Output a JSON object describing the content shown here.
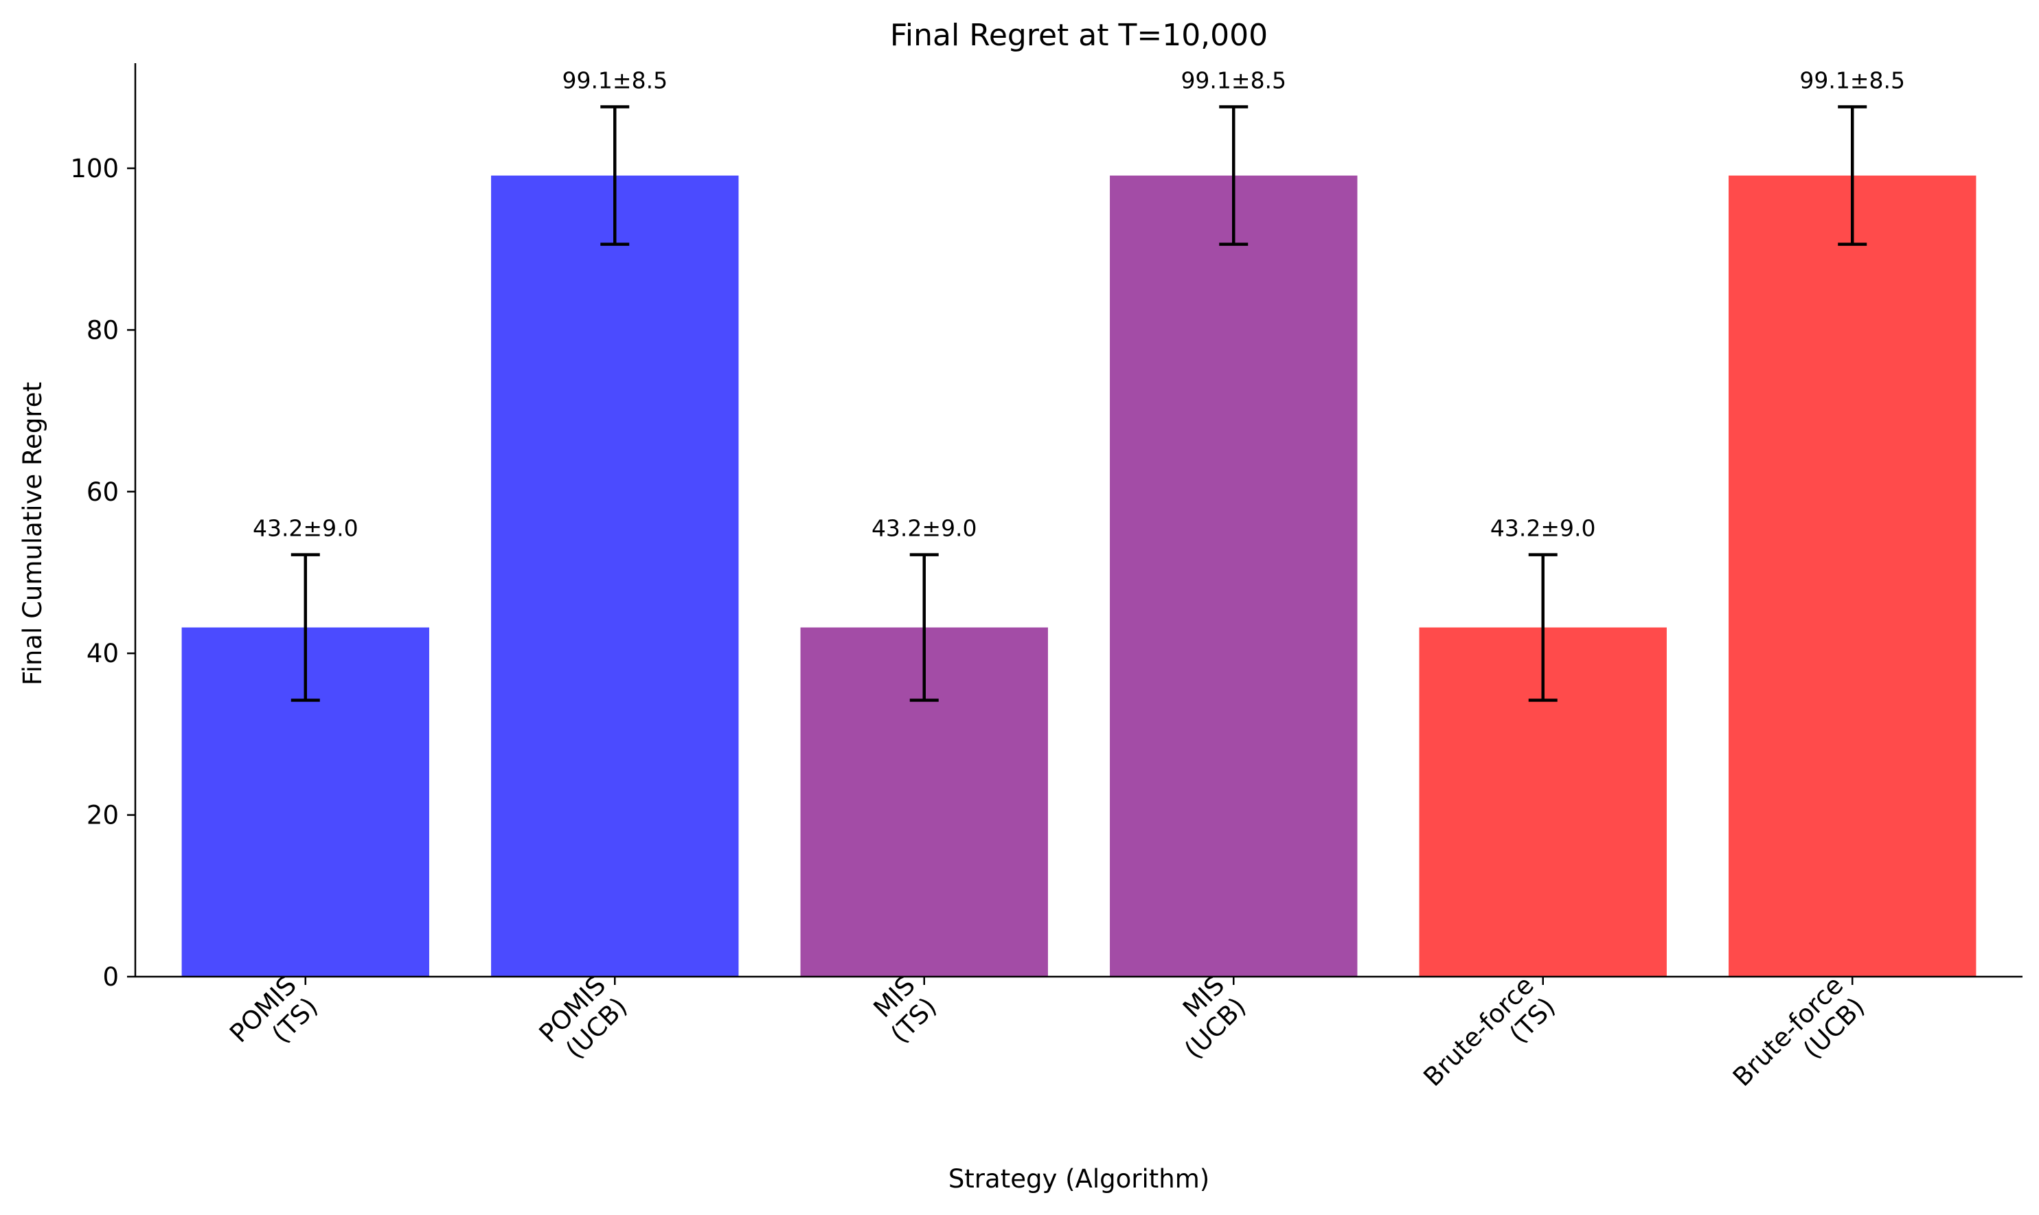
{
  "chart_data": {
    "type": "bar",
    "title": "Final Regret at T=10,000",
    "xlabel": "Strategy (Algorithm)",
    "ylabel": "Final Cumulative Regret",
    "ylim": [
      0,
      113
    ],
    "yticks": [
      0,
      20,
      40,
      60,
      80,
      100
    ],
    "grid": false,
    "categories": [
      [
        "POMIS",
        "(TS)"
      ],
      [
        "POMIS",
        "(UCB)"
      ],
      [
        "MIS",
        "(TS)"
      ],
      [
        "MIS",
        "(UCB)"
      ],
      [
        "Brute-force",
        "(TS)"
      ],
      [
        "Brute-force",
        "(UCB)"
      ]
    ],
    "values": [
      43.2,
      99.1,
      43.2,
      99.1,
      43.2,
      99.1
    ],
    "errors": [
      9.0,
      8.5,
      9.0,
      8.5,
      9.0,
      8.5
    ],
    "value_labels": [
      "43.2±9.0",
      "99.1±8.5",
      "43.2±9.0",
      "99.1±8.5",
      "43.2±9.0",
      "99.1±8.5"
    ],
    "colors": [
      "#4b4bff",
      "#4b4bff",
      "#a34ca6",
      "#a34ca6",
      "#ff4b4b",
      "#ff4b4b"
    ]
  }
}
